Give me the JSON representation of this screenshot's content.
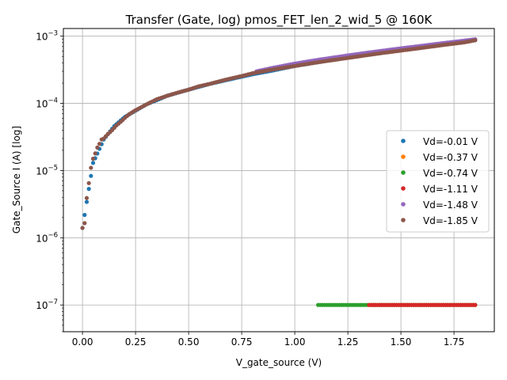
{
  "chart_data": {
    "type": "scatter",
    "title": "Transfer (Gate, log) pmos_FET_len_2_wid_5 @ 160K",
    "xlabel": "V_gate_source (V)",
    "ylabel": "Gate_Source I (A) [log]",
    "xlim": [
      -0.09,
      1.94
    ],
    "ylim": [
      4e-08,
      0.0013
    ],
    "yscale": "log",
    "grid": true,
    "legend_position": "center-right",
    "x_ticks": [
      "0.00",
      "0.25",
      "0.50",
      "0.75",
      "1.00",
      "1.25",
      "1.50",
      "1.75"
    ],
    "x_tick_values": [
      0,
      0.25,
      0.5,
      0.75,
      1.0,
      1.25,
      1.5,
      1.75
    ],
    "y_ticks": [
      {
        "base": "10",
        "exp": "−7",
        "value": 1e-07
      },
      {
        "base": "10",
        "exp": "−6",
        "value": 1e-06
      },
      {
        "base": "10",
        "exp": "−5",
        "value": 1e-05
      },
      {
        "base": "10",
        "exp": "−4",
        "value": 0.0001
      },
      {
        "base": "10",
        "exp": "−3",
        "value": 0.001
      }
    ],
    "series": [
      {
        "name": "Vd=-0.01 V",
        "color": "#1f77b4",
        "x": [
          0.0,
          0.05,
          0.1,
          0.15,
          0.2,
          0.3,
          0.4,
          0.5,
          0.6,
          0.7,
          0.8,
          0.9,
          1.0,
          1.1,
          1.2,
          1.3,
          1.4,
          1.5,
          1.6,
          1.7,
          1.8,
          1.85
        ],
        "y": [
          1.4e-06,
          1.3e-05,
          2.9e-05,
          4.6e-05,
          6.3e-05,
          9.6e-05,
          0.00013,
          0.00016,
          0.000195,
          0.00023,
          0.00027,
          0.00031,
          0.00036,
          0.000405,
          0.000455,
          0.000505,
          0.00056,
          0.00062,
          0.00068,
          0.00075,
          0.00083,
          0.00087
        ]
      },
      {
        "name": "Vd=-0.37 V",
        "color": "#ff7f0e",
        "x": [
          1.36,
          1.4,
          1.45,
          1.5,
          1.55,
          1.6,
          1.65,
          1.7,
          1.75,
          1.8,
          1.85
        ],
        "y": [
          1e-07,
          1e-07,
          1e-07,
          1e-07,
          1e-07,
          1e-07,
          1e-07,
          1e-07,
          1e-07,
          1e-07,
          1e-07
        ]
      },
      {
        "name": "Vd=-0.74 V",
        "color": "#2ca02c",
        "x": [
          1.11,
          1.15,
          1.2,
          1.25,
          1.3,
          1.35,
          1.4,
          1.45,
          1.5,
          1.55,
          1.6,
          1.65,
          1.7,
          1.75,
          1.8,
          1.85
        ],
        "y": [
          1e-07,
          1e-07,
          1e-07,
          1e-07,
          1e-07,
          1e-07,
          1e-07,
          1e-07,
          1e-07,
          1e-07,
          1e-07,
          1e-07,
          1e-07,
          1e-07,
          1e-07,
          1e-07
        ]
      },
      {
        "name": "Vd=-1.11 V",
        "color": "#d62728",
        "x": [
          1.35,
          1.4,
          1.45,
          1.5,
          1.55,
          1.6,
          1.65,
          1.7,
          1.75,
          1.8,
          1.85
        ],
        "y": [
          1e-07,
          1e-07,
          1e-07,
          1e-07,
          1e-07,
          1e-07,
          1e-07,
          1e-07,
          1e-07,
          1e-07,
          1e-07
        ]
      },
      {
        "name": "Vd=-1.48 V",
        "color": "#9467bd",
        "x": [
          0.82,
          0.9,
          1.0,
          1.1,
          1.2,
          1.3,
          1.4,
          1.5,
          1.6,
          1.7,
          1.8,
          1.85
        ],
        "y": [
          0.0003,
          0.00034,
          0.00039,
          0.00044,
          0.00049,
          0.000545,
          0.0006,
          0.00066,
          0.00072,
          0.00079,
          0.00086,
          0.0009
        ]
      },
      {
        "name": "Vd=-1.85 V",
        "color": "#8c564b",
        "x": [
          0.0,
          0.01,
          0.02,
          0.03,
          0.04,
          0.05,
          0.06,
          0.07,
          0.08,
          0.09,
          0.1,
          0.12,
          0.14,
          0.16,
          0.18,
          0.2,
          0.22,
          0.25,
          0.3,
          0.35,
          0.4,
          0.45,
          0.5,
          0.55,
          0.6,
          0.65,
          0.7,
          0.75,
          0.8,
          0.9,
          1.0,
          1.1,
          1.2,
          1.3,
          1.4,
          1.5,
          1.6,
          1.7,
          1.8,
          1.85
        ],
        "y": [
          1.4e-06,
          1.65e-06,
          3.9e-06,
          6.5e-06,
          1.1e-05,
          1.5e-05,
          1.8e-05,
          2.2e-05,
          2.5e-05,
          2.9e-05,
          3e-05,
          3.5e-05,
          4e-05,
          4.7e-05,
          5.3e-05,
          6.1e-05,
          6.9e-05,
          7.9e-05,
          9.6e-05,
          0.000115,
          0.00013,
          0.000145,
          0.00016,
          0.00018,
          0.000195,
          0.000215,
          0.000235,
          0.000255,
          0.00028,
          0.00032,
          0.00036,
          0.000405,
          0.00045,
          0.0005,
          0.000555,
          0.00061,
          0.00067,
          0.00074,
          0.00081,
          0.00087
        ]
      }
    ]
  }
}
